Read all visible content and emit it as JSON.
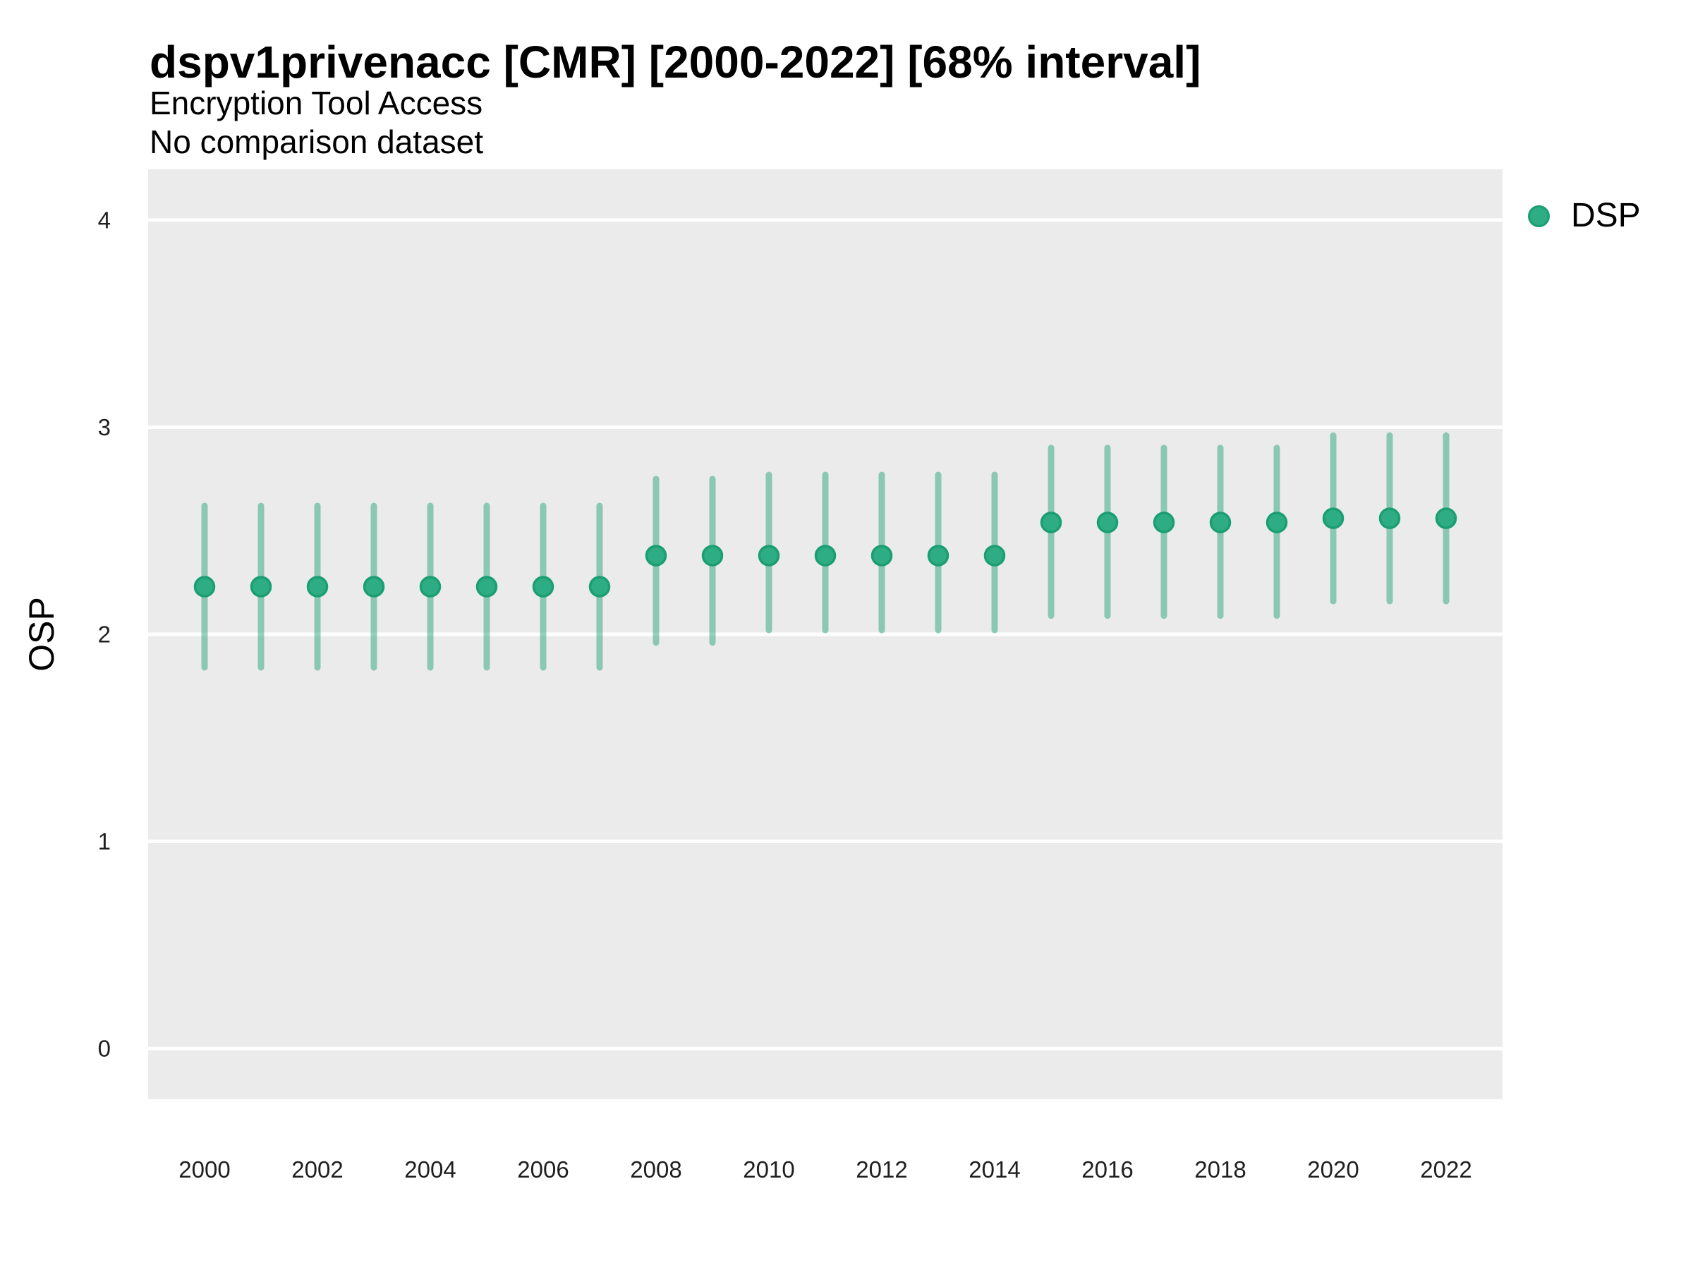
{
  "header": {
    "title": "dspv1privenacc [CMR] [2000-2022] [68% interval]",
    "subtitle": "Encryption Tool Access",
    "note": "No comparison dataset"
  },
  "legend": {
    "label": "DSP"
  },
  "colors": {
    "panel_background": "#ebebeb",
    "gridline": "#ffffff",
    "marker_fill": "#2eac83",
    "marker_stroke": "#1b9e72",
    "interval_color": "#2aa57e",
    "interval_opacity": 0.5,
    "tick_text": "#1f1f1f",
    "text": "#000000"
  },
  "chart_data": {
    "type": "scatter",
    "style": "pointrange (point estimate with 68% interval error bars)",
    "title": "dspv1privenacc [CMR] [2000-2022] [68% interval]",
    "subtitle": "Encryption Tool Access",
    "note": "No comparison dataset",
    "xlabel": "",
    "ylabel": "OSP",
    "interval": "68%",
    "ylim": [
      0,
      4
    ],
    "yticks": [
      4,
      3,
      2,
      1,
      0
    ],
    "xticks": [
      2000,
      2002,
      2004,
      2006,
      2008,
      2010,
      2012,
      2014,
      2016,
      2018,
      2020,
      2022
    ],
    "grid": "major horizontal white gridlines on grey panel",
    "legend_position": "right-top",
    "series": [
      {
        "name": "DSP",
        "years": [
          2000,
          2001,
          2002,
          2003,
          2004,
          2005,
          2006,
          2007,
          2008,
          2009,
          2010,
          2011,
          2012,
          2013,
          2014,
          2015,
          2016,
          2017,
          2018,
          2019,
          2020,
          2021,
          2022
        ],
        "values": [
          2.23,
          2.23,
          2.23,
          2.23,
          2.23,
          2.23,
          2.23,
          2.23,
          2.38,
          2.38,
          2.38,
          2.38,
          2.38,
          2.38,
          2.38,
          2.54,
          2.54,
          2.54,
          2.54,
          2.54,
          2.56,
          2.56,
          2.56
        ],
        "low68": [
          1.84,
          1.84,
          1.84,
          1.84,
          1.84,
          1.84,
          1.84,
          1.84,
          1.96,
          1.96,
          2.02,
          2.02,
          2.02,
          2.02,
          2.02,
          2.09,
          2.09,
          2.09,
          2.09,
          2.09,
          2.16,
          2.16,
          2.16
        ],
        "high68": [
          2.62,
          2.62,
          2.62,
          2.62,
          2.62,
          2.62,
          2.62,
          2.62,
          2.75,
          2.75,
          2.77,
          2.77,
          2.77,
          2.77,
          2.77,
          2.9,
          2.9,
          2.9,
          2.9,
          2.9,
          2.96,
          2.96,
          2.96
        ]
      }
    ]
  }
}
